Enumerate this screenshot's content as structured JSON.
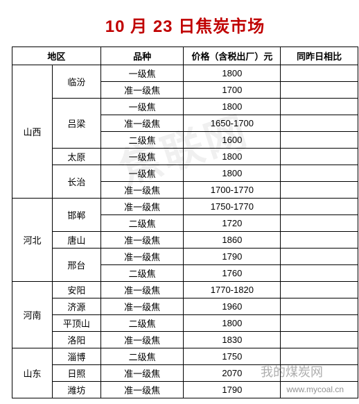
{
  "title": "10 月 23 日焦炭市场",
  "headers": {
    "region": "地区",
    "grade": "品种",
    "price": "价格（含税出厂）元",
    "diff": "同昨日相比"
  },
  "rows": [
    {
      "region": "山西",
      "city": "临汾",
      "grade": "一级焦",
      "price": "1800",
      "diff": ""
    },
    {
      "region": "",
      "city": "",
      "grade": "准一级焦",
      "price": "1700",
      "diff": ""
    },
    {
      "region": "",
      "city": "吕梁",
      "grade": "一级焦",
      "price": "1800",
      "diff": ""
    },
    {
      "region": "",
      "city": "",
      "grade": "准一级焦",
      "price": "1650-1700",
      "diff": ""
    },
    {
      "region": "",
      "city": "",
      "grade": "二级焦",
      "price": "1600",
      "diff": ""
    },
    {
      "region": "",
      "city": "太原",
      "grade": "一级焦",
      "price": "1800",
      "diff": ""
    },
    {
      "region": "",
      "city": "长治",
      "grade": "一级焦",
      "price": "1800",
      "diff": ""
    },
    {
      "region": "",
      "city": "",
      "grade": "准一级焦",
      "price": "1700-1770",
      "diff": ""
    },
    {
      "region": "河北",
      "city": "邯郸",
      "grade": "准一级焦",
      "price": "1750-1770",
      "diff": ""
    },
    {
      "region": "",
      "city": "",
      "grade": "二级焦",
      "price": "1720",
      "diff": ""
    },
    {
      "region": "",
      "city": "唐山",
      "grade": "准一级焦",
      "price": "1860",
      "diff": ""
    },
    {
      "region": "",
      "city": "邢台",
      "grade": "准一级焦",
      "price": "1790",
      "diff": ""
    },
    {
      "region": "",
      "city": "",
      "grade": "二级焦",
      "price": "1760",
      "diff": ""
    },
    {
      "region": "河南",
      "city": "安阳",
      "grade": "准一级焦",
      "price": "1770-1820",
      "diff": ""
    },
    {
      "region": "",
      "city": "济源",
      "grade": "准一级焦",
      "price": "1960",
      "diff": ""
    },
    {
      "region": "",
      "city": "平顶山",
      "grade": "二级焦",
      "price": "1800",
      "diff": ""
    },
    {
      "region": "",
      "city": "洛阳",
      "grade": "准一级焦",
      "price": "1830",
      "diff": ""
    },
    {
      "region": "山东",
      "city": "淄博",
      "grade": "二级焦",
      "price": "1750",
      "diff": ""
    },
    {
      "region": "",
      "city": "日照",
      "grade": "准一级焦",
      "price": "2070",
      "diff": ""
    },
    {
      "region": "",
      "city": "潍坊",
      "grade": "准一级焦",
      "price": "1790",
      "diff": ""
    }
  ],
  "region_spans": {
    "0": 8,
    "8": 5,
    "13": 4,
    "17": 3
  },
  "city_spans": {
    "0": 2,
    "2": 3,
    "5": 1,
    "6": 2,
    "8": 2,
    "10": 1,
    "11": 2,
    "13": 1,
    "14": 1,
    "15": 1,
    "16": 1,
    "17": 1,
    "18": 1,
    "19": 1
  },
  "watermarks": {
    "wm1": "焦联网",
    "wm2": "我的煤炭网",
    "url": "www.mycoal.cn"
  },
  "colors": {
    "title": "#c00000",
    "border": "#000000",
    "text": "#000000",
    "background": "#ffffff"
  }
}
